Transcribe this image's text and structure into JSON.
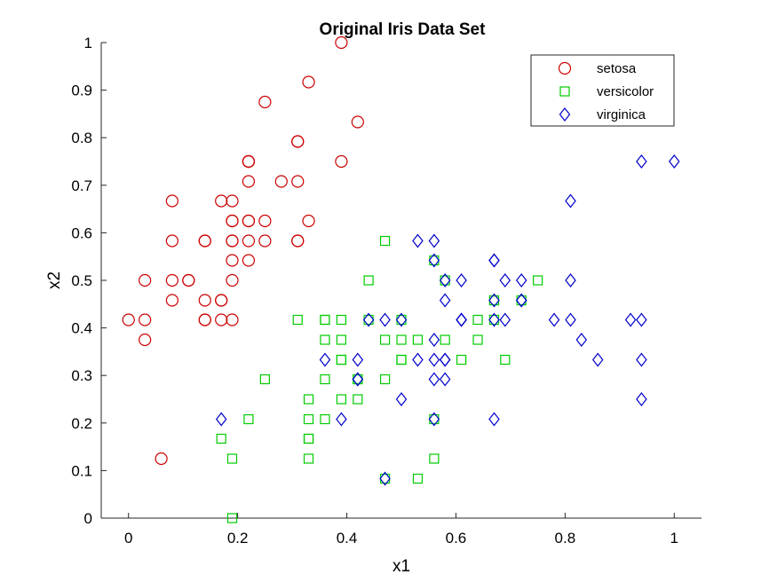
{
  "chart_data": {
    "type": "scatter",
    "title": "Original Iris Data Set",
    "xlabel": "x1",
    "ylabel": "x2",
    "xlim": [
      -0.05,
      1.05
    ],
    "ylim": [
      0,
      1
    ],
    "xticks": [
      0,
      0.2,
      0.4,
      0.6,
      0.8,
      1
    ],
    "xtick_labels": [
      "0",
      "0.2",
      "0.4",
      "0.6",
      "0.8",
      "1"
    ],
    "yticks": [
      0,
      0.1,
      0.2,
      0.3,
      0.4,
      0.5,
      0.6,
      0.7,
      0.8,
      0.9,
      1
    ],
    "ytick_labels": [
      "0",
      "0.1",
      "0.2",
      "0.3",
      "0.4",
      "0.5",
      "0.6",
      "0.7",
      "0.8",
      "0.9",
      "1"
    ],
    "grid": false,
    "legend_position": "top-right",
    "series": [
      {
        "name": "setosa",
        "marker": "circle",
        "color": "#cc0000",
        "points": [
          [
            0.22,
            0.625
          ],
          [
            0.17,
            0.417
          ],
          [
            0.11,
            0.5
          ],
          [
            0.08,
            0.458
          ],
          [
            0.19,
            0.667
          ],
          [
            0.31,
            0.792
          ],
          [
            0.08,
            0.583
          ],
          [
            0.19,
            0.583
          ],
          [
            0.03,
            0.375
          ],
          [
            0.17,
            0.458
          ],
          [
            0.31,
            0.708
          ],
          [
            0.14,
            0.583
          ],
          [
            0.14,
            0.417
          ],
          [
            0.0,
            0.417
          ],
          [
            0.42,
            0.833
          ],
          [
            0.39,
            1.0
          ],
          [
            0.31,
            0.792
          ],
          [
            0.22,
            0.625
          ],
          [
            0.39,
            0.75
          ],
          [
            0.22,
            0.75
          ],
          [
            0.31,
            0.583
          ],
          [
            0.22,
            0.708
          ],
          [
            0.08,
            0.667
          ],
          [
            0.22,
            0.542
          ],
          [
            0.14,
            0.583
          ],
          [
            0.19,
            0.417
          ],
          [
            0.19,
            0.583
          ],
          [
            0.25,
            0.625
          ],
          [
            0.25,
            0.583
          ],
          [
            0.11,
            0.5
          ],
          [
            0.14,
            0.458
          ],
          [
            0.31,
            0.583
          ],
          [
            0.25,
            0.875
          ],
          [
            0.33,
            0.917
          ],
          [
            0.17,
            0.458
          ],
          [
            0.19,
            0.5
          ],
          [
            0.33,
            0.625
          ],
          [
            0.17,
            0.667
          ],
          [
            0.03,
            0.417
          ],
          [
            0.22,
            0.583
          ],
          [
            0.19,
            0.625
          ],
          [
            0.06,
            0.125
          ],
          [
            0.03,
            0.5
          ],
          [
            0.19,
            0.625
          ],
          [
            0.22,
            0.75
          ],
          [
            0.14,
            0.417
          ],
          [
            0.22,
            0.75
          ],
          [
            0.08,
            0.5
          ],
          [
            0.28,
            0.708
          ],
          [
            0.19,
            0.542
          ]
        ]
      },
      {
        "name": "versicolor",
        "marker": "square",
        "color": "#00cc00",
        "points": [
          [
            0.75,
            0.5
          ],
          [
            0.58,
            0.5
          ],
          [
            0.72,
            0.458
          ],
          [
            0.33,
            0.125
          ],
          [
            0.61,
            0.333
          ],
          [
            0.39,
            0.333
          ],
          [
            0.56,
            0.542
          ],
          [
            0.17,
            0.167
          ],
          [
            0.64,
            0.375
          ],
          [
            0.25,
            0.292
          ],
          [
            0.19,
            0.0
          ],
          [
            0.44,
            0.417
          ],
          [
            0.47,
            0.083
          ],
          [
            0.5,
            0.375
          ],
          [
            0.36,
            0.375
          ],
          [
            0.67,
            0.458
          ],
          [
            0.36,
            0.417
          ],
          [
            0.42,
            0.292
          ],
          [
            0.53,
            0.083
          ],
          [
            0.36,
            0.208
          ],
          [
            0.44,
            0.5
          ],
          [
            0.5,
            0.333
          ],
          [
            0.56,
            0.208
          ],
          [
            0.5,
            0.333
          ],
          [
            0.58,
            0.375
          ],
          [
            0.64,
            0.417
          ],
          [
            0.69,
            0.333
          ],
          [
            0.67,
            0.417
          ],
          [
            0.47,
            0.375
          ],
          [
            0.39,
            0.25
          ],
          [
            0.33,
            0.167
          ],
          [
            0.33,
            0.167
          ],
          [
            0.42,
            0.292
          ],
          [
            0.47,
            0.292
          ],
          [
            0.31,
            0.417
          ],
          [
            0.47,
            0.583
          ],
          [
            0.67,
            0.458
          ],
          [
            0.56,
            0.125
          ],
          [
            0.36,
            0.417
          ],
          [
            0.33,
            0.208
          ],
          [
            0.33,
            0.25
          ],
          [
            0.5,
            0.417
          ],
          [
            0.42,
            0.25
          ],
          [
            0.19,
            0.125
          ],
          [
            0.36,
            0.292
          ],
          [
            0.39,
            0.417
          ],
          [
            0.39,
            0.375
          ],
          [
            0.53,
            0.375
          ],
          [
            0.22,
            0.208
          ],
          [
            0.39,
            0.333
          ]
        ]
      },
      {
        "name": "virginica",
        "marker": "diamond",
        "color": "#0000cc",
        "points": [
          [
            0.56,
            0.542
          ],
          [
            0.42,
            0.292
          ],
          [
            0.78,
            0.417
          ],
          [
            0.56,
            0.375
          ],
          [
            0.61,
            0.417
          ],
          [
            0.92,
            0.417
          ],
          [
            0.17,
            0.208
          ],
          [
            0.83,
            0.375
          ],
          [
            0.67,
            0.208
          ],
          [
            0.81,
            0.667
          ],
          [
            0.61,
            0.5
          ],
          [
            0.58,
            0.292
          ],
          [
            0.69,
            0.417
          ],
          [
            0.39,
            0.208
          ],
          [
            0.42,
            0.333
          ],
          [
            0.58,
            0.5
          ],
          [
            0.61,
            0.417
          ],
          [
            0.94,
            0.75
          ],
          [
            0.94,
            0.25
          ],
          [
            0.47,
            0.083
          ],
          [
            0.72,
            0.5
          ],
          [
            0.36,
            0.333
          ],
          [
            0.94,
            0.333
          ],
          [
            0.56,
            0.292
          ],
          [
            0.67,
            0.542
          ],
          [
            0.81,
            0.5
          ],
          [
            0.53,
            0.333
          ],
          [
            0.5,
            0.417
          ],
          [
            0.58,
            0.333
          ],
          [
            0.81,
            0.417
          ],
          [
            0.86,
            0.333
          ],
          [
            1.0,
            0.75
          ],
          [
            0.58,
            0.333
          ],
          [
            0.56,
            0.333
          ],
          [
            0.5,
            0.25
          ],
          [
            0.94,
            0.417
          ],
          [
            0.56,
            0.583
          ],
          [
            0.58,
            0.458
          ],
          [
            0.47,
            0.417
          ],
          [
            0.72,
            0.458
          ],
          [
            0.67,
            0.458
          ],
          [
            0.72,
            0.458
          ],
          [
            0.42,
            0.292
          ],
          [
            0.69,
            0.5
          ],
          [
            0.67,
            0.542
          ],
          [
            0.67,
            0.417
          ],
          [
            0.56,
            0.208
          ],
          [
            0.61,
            0.417
          ],
          [
            0.53,
            0.583
          ],
          [
            0.44,
            0.417
          ]
        ]
      }
    ]
  }
}
